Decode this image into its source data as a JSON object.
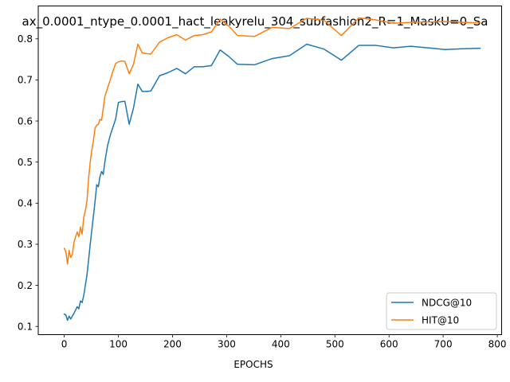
{
  "chart_data": {
    "type": "line",
    "title": "ax_0.0001_ntype_0.0001_hact_leakyrelu_304_subfashion2_R=1_MaskU=0_Sa",
    "xlabel": "EPOCHS",
    "ylabel": "",
    "xlim": [
      -48,
      808
    ],
    "ylim": [
      0.08,
      0.88
    ],
    "xticks": [
      0,
      100,
      200,
      300,
      400,
      500,
      600,
      700,
      800
    ],
    "yticks": [
      0.1,
      0.2,
      0.3,
      0.4,
      0.5,
      0.6,
      0.7,
      0.8
    ],
    "xtick_labels": [
      "0",
      "100",
      "200",
      "300",
      "400",
      "500",
      "600",
      "700",
      "800"
    ],
    "ytick_labels": [
      "0.1",
      "0.2",
      "0.3",
      "0.4",
      "0.5",
      "0.6",
      "0.7",
      "0.8"
    ],
    "grid": false,
    "legend_position": "lower-right",
    "series": [
      {
        "name": "NDCG@10",
        "color": "#1f77b4",
        "x": [
          0,
          3,
          6,
          9,
          12,
          15,
          18,
          21,
          24,
          27,
          30,
          33,
          36,
          39,
          42,
          45,
          48,
          51,
          54,
          57,
          60,
          63,
          66,
          69,
          72,
          75,
          80,
          85,
          90,
          95,
          100,
          105,
          112,
          120,
          128,
          136,
          144,
          152,
          160,
          176,
          192,
          208,
          224,
          240,
          256,
          272,
          288,
          304,
          320,
          352,
          384,
          416,
          448,
          480,
          512,
          544,
          576,
          608,
          640,
          672,
          704,
          736,
          768
        ],
        "y": [
          0.13,
          0.128,
          0.115,
          0.125,
          0.118,
          0.125,
          0.132,
          0.14,
          0.148,
          0.143,
          0.162,
          0.158,
          0.175,
          0.2,
          0.225,
          0.262,
          0.3,
          0.335,
          0.37,
          0.405,
          0.445,
          0.44,
          0.465,
          0.477,
          0.47,
          0.5,
          0.54,
          0.565,
          0.585,
          0.605,
          0.645,
          0.647,
          0.648,
          0.592,
          0.632,
          0.69,
          0.672,
          0.672,
          0.673,
          0.71,
          0.718,
          0.728,
          0.715,
          0.732,
          0.732,
          0.735,
          0.773,
          0.757,
          0.738,
          0.737,
          0.752,
          0.759,
          0.787,
          0.775,
          0.748,
          0.784,
          0.784,
          0.778,
          0.782,
          0.778,
          0.774,
          0.776,
          0.777
        ]
      },
      {
        "name": "HIT@10",
        "color": "#ff7f0e",
        "x": [
          0,
          3,
          6,
          9,
          12,
          15,
          18,
          21,
          24,
          27,
          30,
          33,
          36,
          39,
          42,
          45,
          48,
          51,
          54,
          57,
          60,
          63,
          66,
          69,
          72,
          75,
          80,
          85,
          90,
          95,
          100,
          105,
          112,
          120,
          128,
          136,
          144,
          152,
          160,
          176,
          192,
          208,
          224,
          240,
          256,
          272,
          288,
          304,
          320,
          352,
          384,
          416,
          448,
          480,
          512,
          544,
          576,
          608,
          640,
          672,
          704,
          736,
          768
        ],
        "y": [
          0.29,
          0.282,
          0.252,
          0.285,
          0.268,
          0.275,
          0.305,
          0.318,
          0.33,
          0.318,
          0.342,
          0.325,
          0.365,
          0.382,
          0.405,
          0.46,
          0.5,
          0.53,
          0.553,
          0.583,
          0.59,
          0.592,
          0.604,
          0.602,
          0.63,
          0.66,
          0.68,
          0.7,
          0.722,
          0.74,
          0.744,
          0.746,
          0.745,
          0.715,
          0.738,
          0.787,
          0.766,
          0.764,
          0.763,
          0.792,
          0.803,
          0.81,
          0.797,
          0.808,
          0.81,
          0.817,
          0.848,
          0.831,
          0.808,
          0.806,
          0.828,
          0.825,
          0.85,
          0.845,
          0.808,
          0.851,
          0.846,
          0.838,
          0.84,
          0.841,
          0.842,
          0.84,
          0.839
        ]
      }
    ]
  }
}
